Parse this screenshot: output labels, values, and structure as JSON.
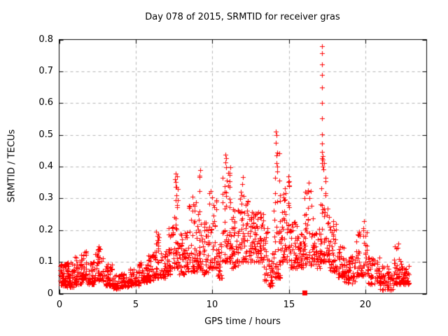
{
  "window": {
    "background": "#ffffff"
  },
  "chart_data": {
    "type": "scatter",
    "title": "Day 078 of 2015, SRMTID for receiver gras",
    "xlabel": "GPS time / hours",
    "ylabel": "SRMTID / TECUs",
    "xlim": [
      0,
      24
    ],
    "ylim": [
      0,
      0.8
    ],
    "xticks": [
      "0",
      "5",
      "10",
      "15",
      "20"
    ],
    "xtick_values": [
      0,
      5,
      10,
      15,
      20
    ],
    "yticks": [
      "0",
      "0.1",
      "0.2",
      "0.3",
      "0.4",
      "0.5",
      "0.6",
      "0.7",
      "0.8"
    ],
    "ytick_values": [
      0,
      0.1,
      0.2,
      0.3,
      0.4,
      0.5,
      0.6,
      0.7,
      0.8
    ],
    "grid": {
      "show": true,
      "color": "#b4b4b4",
      "dash": [
        4,
        4
      ]
    },
    "axis_color": "#000000",
    "legend": "none",
    "series": [
      {
        "name": "srmtid-points",
        "marker": "plus",
        "color": "#ff0000",
        "seed": 78,
        "envelope_bins": [
          [
            0.05,
            0.5,
            0.025,
            0.095,
            55,
            1.6
          ],
          [
            0.5,
            1.0,
            0.02,
            0.1,
            55,
            1.6
          ],
          [
            1.0,
            1.5,
            0.03,
            0.125,
            50,
            1.7
          ],
          [
            1.5,
            1.8,
            0.04,
            0.135,
            30,
            1.7
          ],
          [
            1.8,
            2.3,
            0.03,
            0.1,
            45,
            1.6
          ],
          [
            2.3,
            2.9,
            0.04,
            0.148,
            50,
            1.7
          ],
          [
            2.9,
            3.5,
            0.025,
            0.095,
            50,
            1.6
          ],
          [
            3.5,
            4.0,
            0.015,
            0.06,
            45,
            1.5
          ],
          [
            4.0,
            4.6,
            0.02,
            0.065,
            45,
            1.5
          ],
          [
            4.6,
            5.2,
            0.025,
            0.08,
            45,
            1.5
          ],
          [
            5.2,
            5.8,
            0.035,
            0.1,
            45,
            1.6
          ],
          [
            5.8,
            6.2,
            0.04,
            0.13,
            35,
            1.7
          ],
          [
            6.2,
            6.6,
            0.05,
            0.19,
            35,
            1.9
          ],
          [
            6.6,
            7.1,
            0.05,
            0.135,
            40,
            1.6
          ],
          [
            7.1,
            7.45,
            0.06,
            0.21,
            30,
            1.8
          ],
          [
            7.45,
            7.8,
            0.08,
            0.375,
            40,
            2.4
          ],
          [
            7.8,
            8.2,
            0.06,
            0.19,
            35,
            1.7
          ],
          [
            8.2,
            8.55,
            0.07,
            0.285,
            30,
            2.0
          ],
          [
            8.55,
            9.0,
            0.07,
            0.31,
            40,
            2.0
          ],
          [
            9.0,
            9.3,
            0.08,
            0.39,
            35,
            2.4
          ],
          [
            9.3,
            9.75,
            0.06,
            0.23,
            35,
            1.8
          ],
          [
            9.75,
            10.3,
            0.08,
            0.335,
            45,
            2.0
          ],
          [
            10.3,
            10.65,
            0.05,
            0.16,
            30,
            1.6
          ],
          [
            10.65,
            11.2,
            0.1,
            0.42,
            55,
            2.3
          ],
          [
            11.2,
            11.75,
            0.08,
            0.27,
            45,
            1.7
          ],
          [
            11.75,
            12.35,
            0.1,
            0.325,
            50,
            1.8
          ],
          [
            12.35,
            13.35,
            0.1,
            0.26,
            90,
            1.3
          ],
          [
            13.35,
            13.65,
            0.04,
            0.21,
            25,
            1.7
          ],
          [
            13.65,
            13.95,
            0.02,
            0.13,
            25,
            1.6
          ],
          [
            13.95,
            14.45,
            0.05,
            0.47,
            50,
            2.4
          ],
          [
            14.45,
            15.1,
            0.1,
            0.36,
            55,
            1.5
          ],
          [
            15.1,
            15.65,
            0.08,
            0.23,
            45,
            1.6
          ],
          [
            15.65,
            16.0,
            0.08,
            0.19,
            35,
            1.6
          ],
          [
            16.0,
            16.6,
            0.09,
            0.33,
            45,
            2.0
          ],
          [
            16.6,
            17.05,
            0.08,
            0.21,
            35,
            1.7
          ],
          [
            17.05,
            17.65,
            0.1,
            0.46,
            65,
            2.2
          ],
          [
            17.65,
            18.15,
            0.07,
            0.26,
            40,
            1.8
          ],
          [
            18.15,
            18.6,
            0.05,
            0.16,
            35,
            1.6
          ],
          [
            18.6,
            19.35,
            0.03,
            0.125,
            50,
            1.5
          ],
          [
            19.35,
            20.15,
            0.055,
            0.2,
            55,
            1.6
          ],
          [
            20.15,
            20.95,
            0.03,
            0.12,
            50,
            1.6
          ],
          [
            20.95,
            21.85,
            0.012,
            0.09,
            60,
            1.5
          ],
          [
            21.85,
            22.35,
            0.03,
            0.155,
            40,
            1.8
          ],
          [
            22.35,
            22.85,
            0.03,
            0.095,
            45,
            1.5
          ]
        ],
        "outlier_points": [
          [
            17.15,
            0.779
          ],
          [
            17.17,
            0.757
          ],
          [
            17.16,
            0.722
          ],
          [
            17.18,
            0.688
          ],
          [
            17.15,
            0.648
          ],
          [
            17.17,
            0.601
          ],
          [
            17.16,
            0.553
          ],
          [
            17.18,
            0.501
          ],
          [
            17.15,
            0.472
          ],
          [
            17.17,
            0.447
          ],
          [
            17.19,
            0.432
          ],
          [
            17.22,
            0.421
          ],
          [
            17.17,
            0.41
          ],
          [
            17.2,
            0.4
          ],
          [
            17.24,
            0.392
          ],
          [
            14.15,
            0.51
          ],
          [
            14.2,
            0.5
          ],
          [
            14.17,
            0.476
          ],
          [
            14.22,
            0.443
          ],
          [
            14.18,
            0.412
          ],
          [
            14.26,
            0.401
          ],
          [
            10.85,
            0.437
          ],
          [
            10.9,
            0.427
          ],
          [
            10.87,
            0.414
          ],
          [
            10.92,
            0.397
          ],
          [
            9.2,
            0.39
          ],
          [
            9.16,
            0.371
          ],
          [
            7.62,
            0.378
          ],
          [
            7.58,
            0.361
          ],
          [
            7.66,
            0.336
          ],
          [
            12.02,
            0.368
          ],
          [
            11.97,
            0.344
          ],
          [
            16.3,
            0.349
          ],
          [
            16.27,
            0.321
          ],
          [
            14.95,
            0.37
          ],
          [
            14.99,
            0.352
          ],
          [
            15.02,
            0.34
          ],
          [
            19.9,
            0.228
          ],
          [
            19.87,
            0.206
          ],
          [
            22.15,
            0.158
          ],
          [
            22.11,
            0.145
          ],
          [
            6.35,
            0.196
          ],
          [
            6.4,
            0.182
          ],
          [
            2.6,
            0.148
          ],
          [
            2.55,
            0.139
          ]
        ]
      },
      {
        "name": "zero-flag-point",
        "marker": "filled-square",
        "color": "#ff0000",
        "points": [
          [
            16.0,
            0.004
          ]
        ]
      }
    ]
  }
}
